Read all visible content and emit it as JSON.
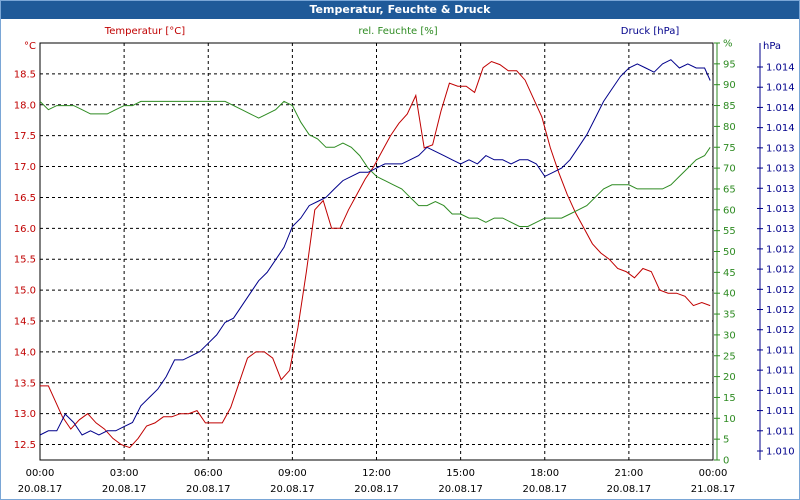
{
  "window": {
    "title": "Temperatur, Feuchte & Druck"
  },
  "colors": {
    "temperature": "#c00000",
    "humidity": "#2e8b22",
    "pressure": "#00008b",
    "grid": "#000000",
    "background": "#ffffff",
    "titlebar": "#1f5a99"
  },
  "chart_data": {
    "type": "line",
    "title": "Temperatur, Feuchte & Druck",
    "grid": true,
    "x_ticks": [
      {
        "time": "00:00",
        "date": "20.08.17"
      },
      {
        "time": "03:00",
        "date": "20.08.17"
      },
      {
        "time": "06:00",
        "date": "20.08.17"
      },
      {
        "time": "09:00",
        "date": "20.08.17"
      },
      {
        "time": "12:00",
        "date": "20.08.17"
      },
      {
        "time": "15:00",
        "date": "20.08.17"
      },
      {
        "time": "18:00",
        "date": "20.08.17"
      },
      {
        "time": "21:00",
        "date": "20.08.17"
      },
      {
        "time": "00:00",
        "date": "21.08.17"
      }
    ],
    "axes": {
      "temperature": {
        "unit": "°C",
        "label": "Temperatur [°C]",
        "range": [
          12.25,
          19.0
        ],
        "ticks": [
          "12.5",
          "13.0",
          "13.5",
          "14.0",
          "14.5",
          "15.0",
          "15.5",
          "16.0",
          "16.5",
          "17.0",
          "17.5",
          "18.0",
          "18.5"
        ]
      },
      "humidity": {
        "unit": "%",
        "label": "rel. Feuchte [%]",
        "range": [
          0,
          100
        ],
        "ticks": [
          "0",
          "5",
          "10",
          "15",
          "20",
          "25",
          "30",
          "35",
          "40",
          "45",
          "50",
          "55",
          "60",
          "65",
          "70",
          "75",
          "80",
          "85",
          "90",
          "95",
          "%"
        ]
      },
      "pressure": {
        "unit": "hPa",
        "label": "Druck [hPa]",
        "ticks": [
          "1.010",
          "1.011",
          "1.011",
          "1.011",
          "1.011",
          "1.011",
          "1.012",
          "1.012",
          "1.012",
          "1.012",
          "1.012",
          "1.013",
          "1.013",
          "1.013",
          "1.013",
          "1.013",
          "1.014",
          "1.014",
          "1.014",
          "1.014"
        ]
      }
    },
    "series": [
      {
        "name": "Temperatur [°C]",
        "axis": "temperature",
        "x": [
          0,
          0.3,
          0.5,
          0.8,
          1.1,
          1.4,
          1.7,
          2.0,
          2.3,
          2.6,
          2.9,
          3.2,
          3.5,
          3.8,
          4.1,
          4.4,
          4.7,
          5.0,
          5.3,
          5.6,
          5.9,
          6.2,
          6.5,
          6.8,
          7.1,
          7.4,
          7.7,
          8.0,
          8.3,
          8.6,
          8.9,
          9.2,
          9.5,
          9.8,
          10.1,
          10.4,
          10.7,
          11.0,
          11.3,
          11.6,
          11.9,
          12.2,
          12.5,
          12.8,
          13.1,
          13.4,
          13.7,
          14.0,
          14.3,
          14.6,
          14.9,
          15.2,
          15.5,
          15.8,
          16.1,
          16.4,
          16.7,
          17.0,
          17.3,
          17.6,
          17.9,
          18.2,
          18.5,
          18.8,
          19.1,
          19.4,
          19.7,
          20.0,
          20.3,
          20.6,
          20.9,
          21.2,
          21.5,
          21.8,
          22.1,
          22.4,
          22.7,
          23.0,
          23.3,
          23.6,
          23.9
        ],
        "values": [
          13.45,
          13.45,
          13.25,
          12.95,
          12.75,
          12.9,
          13.0,
          12.85,
          12.75,
          12.6,
          12.5,
          12.45,
          12.6,
          12.8,
          12.85,
          12.95,
          12.95,
          13.0,
          13.0,
          13.05,
          12.85,
          12.85,
          12.85,
          13.1,
          13.5,
          13.9,
          14.0,
          14.0,
          13.9,
          13.55,
          13.7,
          14.4,
          15.3,
          16.3,
          16.45,
          16.0,
          16.0,
          16.3,
          16.55,
          16.8,
          17.0,
          17.25,
          17.5,
          17.7,
          17.85,
          18.15,
          17.3,
          17.35,
          17.9,
          18.35,
          18.3,
          18.3,
          18.2,
          18.6,
          18.7,
          18.65,
          18.55,
          18.55,
          18.4,
          18.1,
          17.8,
          17.3,
          16.9,
          16.55,
          16.25,
          16.0,
          15.75,
          15.6,
          15.5,
          15.35,
          15.3,
          15.2,
          15.35,
          15.3,
          15.0,
          14.95,
          14.95,
          14.9,
          14.75,
          14.8,
          14.75
        ]
      },
      {
        "name": "rel. Feuchte [%]",
        "axis": "humidity",
        "x": [
          0,
          0.3,
          0.6,
          0.9,
          1.2,
          1.5,
          1.8,
          2.1,
          2.4,
          2.7,
          3.0,
          3.3,
          3.6,
          3.9,
          4.2,
          4.5,
          4.8,
          5.1,
          5.4,
          5.7,
          6.0,
          6.3,
          6.6,
          6.9,
          7.2,
          7.5,
          7.8,
          8.1,
          8.4,
          8.7,
          9.0,
          9.3,
          9.6,
          9.9,
          10.2,
          10.5,
          10.8,
          11.1,
          11.4,
          11.7,
          12.0,
          12.3,
          12.6,
          12.9,
          13.2,
          13.5,
          13.8,
          14.1,
          14.4,
          14.7,
          15.0,
          15.3,
          15.6,
          15.9,
          16.2,
          16.5,
          16.8,
          17.1,
          17.4,
          17.7,
          18.0,
          18.3,
          18.6,
          18.9,
          19.2,
          19.5,
          19.8,
          20.1,
          20.4,
          20.7,
          21.0,
          21.3,
          21.6,
          21.9,
          22.2,
          22.5,
          22.8,
          23.1,
          23.4,
          23.7,
          23.9
        ],
        "values": [
          86,
          84,
          85,
          85,
          85,
          84,
          83,
          83,
          83,
          84,
          85,
          85,
          86,
          86,
          86,
          86,
          86,
          86,
          86,
          86,
          86,
          86,
          86,
          85,
          84,
          83,
          82,
          83,
          84,
          86,
          85,
          81,
          78,
          77,
          75,
          75,
          76,
          75,
          73,
          70,
          68,
          67,
          66,
          65,
          63,
          61,
          61,
          62,
          61,
          59,
          59,
          58,
          58,
          57,
          58,
          58,
          57,
          56,
          56,
          57,
          58,
          58,
          58,
          59,
          60,
          61,
          63,
          65,
          66,
          66,
          66,
          65,
          65,
          65,
          65,
          66,
          68,
          70,
          72,
          73,
          75
        ]
      },
      {
        "name": "Druck [hPa]",
        "axis": "pressure",
        "x": [
          0,
          0.3,
          0.6,
          0.9,
          1.2,
          1.5,
          1.8,
          2.1,
          2.4,
          2.7,
          3.0,
          3.3,
          3.6,
          3.9,
          4.2,
          4.5,
          4.8,
          5.1,
          5.4,
          5.7,
          6.0,
          6.3,
          6.6,
          6.9,
          7.2,
          7.5,
          7.8,
          8.1,
          8.4,
          8.7,
          9.0,
          9.3,
          9.6,
          9.9,
          10.2,
          10.5,
          10.8,
          11.1,
          11.4,
          11.7,
          12.0,
          12.3,
          12.6,
          12.9,
          13.2,
          13.5,
          13.8,
          14.1,
          14.4,
          14.7,
          15.0,
          15.3,
          15.6,
          15.9,
          16.2,
          16.5,
          16.8,
          17.1,
          17.4,
          17.7,
          18.0,
          18.3,
          18.6,
          18.9,
          19.2,
          19.5,
          19.8,
          20.1,
          20.4,
          20.7,
          21.0,
          21.3,
          21.6,
          21.9,
          22.2,
          22.5,
          22.8,
          23.1,
          23.4,
          23.7,
          23.9
        ],
        "values": [
          6,
          7,
          7,
          11,
          9,
          6,
          7,
          6,
          7,
          7,
          8,
          9,
          13,
          15,
          17,
          20,
          24,
          24,
          25,
          26,
          28,
          30,
          33,
          34,
          37,
          40,
          43,
          45,
          48,
          51,
          56,
          58,
          61,
          62,
          63,
          65,
          67,
          68,
          69,
          69,
          70,
          71,
          71,
          71,
          72,
          73,
          75,
          74,
          73,
          72,
          71,
          72,
          71,
          73,
          72,
          72,
          71,
          72,
          72,
          71,
          68,
          69,
          70,
          72,
          75,
          78,
          82,
          86,
          89,
          92,
          94,
          95,
          94,
          93,
          95,
          96,
          94,
          95,
          94,
          94,
          91
        ]
      }
    ]
  }
}
